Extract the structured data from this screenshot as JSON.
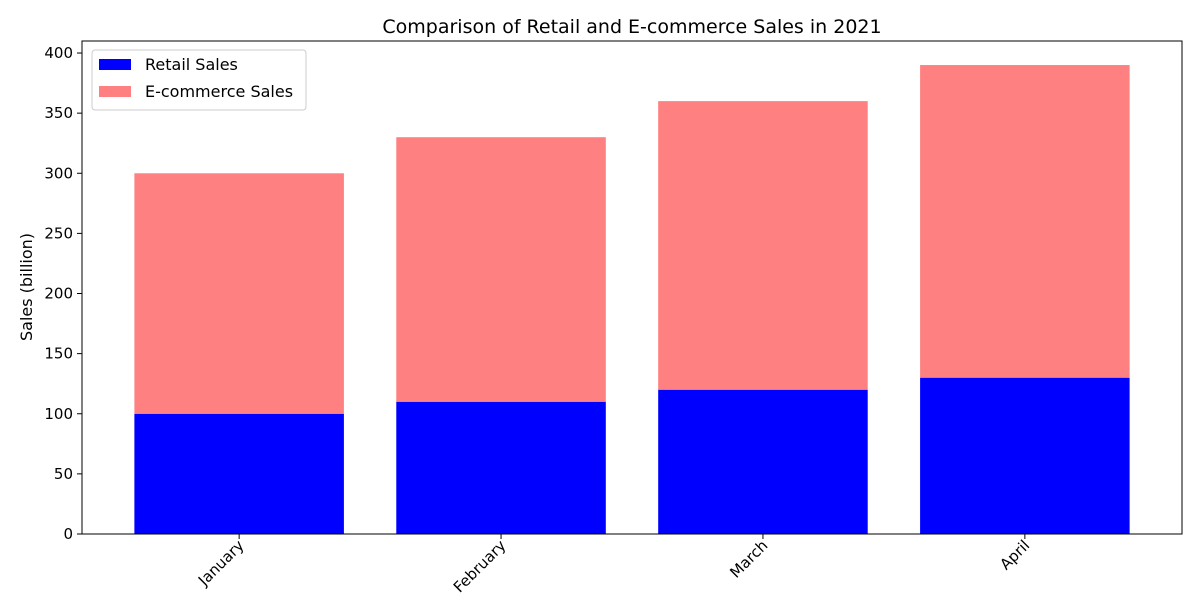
{
  "chart_data": {
    "type": "bar",
    "stacked": true,
    "title": "Comparison of Retail and E-commerce Sales in 2021",
    "xlabel": "",
    "ylabel": "Sales (billion)",
    "categories": [
      "January",
      "February",
      "March",
      "April"
    ],
    "series": [
      {
        "name": "Retail Sales",
        "color": "#0000ff",
        "values": [
          100,
          110,
          120,
          130
        ]
      },
      {
        "name": "E-commerce Sales",
        "color": "#ff8080",
        "values": [
          200,
          220,
          240,
          260
        ]
      }
    ],
    "ylim": [
      0,
      410
    ],
    "yticks": [
      0,
      50,
      100,
      150,
      200,
      250,
      300,
      350,
      400
    ],
    "xtick_rotation": 45,
    "legend": "top-left",
    "grid": false
  }
}
